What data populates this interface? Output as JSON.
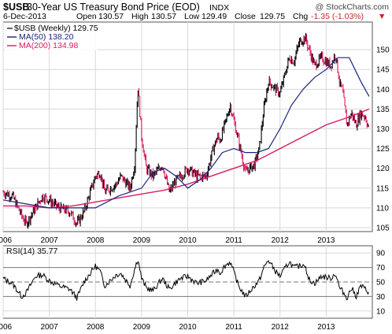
{
  "header": {
    "symbol": "$USB",
    "description": "30-Year US Treasury Bond Price (EOD)",
    "exchange": "INDX",
    "brand": "@ StockCharts.com",
    "date": "6-Dec-2013",
    "open_label": "Open",
    "open_value": "130.57",
    "high_label": "High",
    "high_value": "130.57",
    "low_label": "Low",
    "low_value": "129.49",
    "close_label": "Close",
    "close_value": "129.75",
    "chg_label": "Chg",
    "chg_value": "-1.35 (-1.03%)",
    "chg_marker": "▼"
  },
  "legend": {
    "price": "$USB (Weekly) 129.75",
    "ma50": "MA(50) 138.20",
    "ma200": "MA(200) 134.98"
  },
  "rsi_label": "RSI(14) 35.77",
  "colors": {
    "price": "#000000",
    "ma50": "#1a237e",
    "ma200": "#d81b60",
    "down_bar": "#d81b60",
    "grid": "#d8d8d8",
    "border": "#555555"
  },
  "chart_data": [
    {
      "type": "line",
      "title": "$USB 30-Year US Treasury Bond Price (EOD) INDX",
      "ylim": [
        104,
        157
      ],
      "y_ticks": [
        105,
        110,
        115,
        120,
        125,
        130,
        135,
        140,
        145,
        150
      ],
      "x_ticks": [
        "2006",
        "2007",
        "2008",
        "2009",
        "2010",
        "2011",
        "2012",
        "2013"
      ],
      "grid": true,
      "legend_position": "top-left",
      "series": [
        {
          "name": "$USB (Weekly)",
          "x": [
            2006.0,
            2006.2,
            2006.4,
            2006.5,
            2006.7,
            2006.85,
            2007.0,
            2007.2,
            2007.45,
            2007.6,
            2007.75,
            2008.0,
            2008.1,
            2008.2,
            2008.45,
            2008.55,
            2008.75,
            2008.85,
            2008.92,
            2009.0,
            2009.1,
            2009.25,
            2009.45,
            2009.6,
            2009.75,
            2009.85,
            2010.0,
            2010.2,
            2010.4,
            2010.55,
            2010.65,
            2010.7,
            2010.8,
            2010.92,
            2011.1,
            2011.25,
            2011.45,
            2011.55,
            2011.65,
            2011.75,
            2011.9,
            2012.0,
            2012.2,
            2012.3,
            2012.42,
            2012.55,
            2012.6,
            2012.75,
            2012.9,
            2013.1,
            2013.2,
            2013.3,
            2013.35,
            2013.45,
            2013.55,
            2013.65,
            2013.75,
            2013.85,
            2013.93
          ],
          "values": [
            114,
            113,
            108,
            106,
            110,
            113,
            112,
            110,
            109,
            106,
            109,
            118,
            119,
            114,
            116,
            118,
            115,
            121,
            141,
            128,
            120,
            118,
            121,
            114,
            117,
            118,
            120,
            118,
            118,
            125,
            128,
            127,
            131,
            136,
            127,
            119,
            121,
            125,
            135,
            142,
            140,
            139,
            148,
            147,
            152,
            153,
            151,
            146,
            148,
            146,
            149,
            141,
            140,
            131,
            134,
            131,
            134,
            133,
            129.75
          ]
        },
        {
          "name": "MA(50)",
          "x": [
            2006.0,
            2006.5,
            2007.0,
            2007.5,
            2008.0,
            2008.5,
            2009.0,
            2009.25,
            2009.5,
            2009.75,
            2010.0,
            2010.25,
            2010.5,
            2010.75,
            2011.0,
            2011.25,
            2011.5,
            2011.75,
            2012.0,
            2012.25,
            2012.5,
            2012.75,
            2013.0,
            2013.25,
            2013.5,
            2013.75,
            2013.93
          ],
          "values": [
            112,
            111,
            110,
            110,
            110,
            113,
            115,
            119,
            120,
            118,
            115,
            117,
            120,
            124,
            125,
            124,
            124,
            125,
            130,
            136,
            140,
            143,
            145,
            148,
            148,
            142,
            138.2
          ]
        },
        {
          "name": "MA(200)",
          "x": [
            2006.0,
            2006.5,
            2007.0,
            2007.5,
            2008.0,
            2008.5,
            2009.0,
            2009.5,
            2010.0,
            2010.5,
            2011.0,
            2011.5,
            2012.0,
            2012.5,
            2013.0,
            2013.5,
            2013.93
          ],
          "values": [
            110.5,
            110.5,
            110,
            110.5,
            111.5,
            112.5,
            113.5,
            114.5,
            116,
            118,
            120,
            122,
            125,
            128,
            131,
            133,
            134.98
          ]
        }
      ]
    },
    {
      "type": "line",
      "title": "RSI(14) 35.77",
      "ylim": [
        0,
        100
      ],
      "y_ticks": [
        10,
        30,
        50,
        70,
        90
      ],
      "reference_lines": [
        30,
        50,
        70
      ],
      "x_ticks": [
        "2006",
        "2007",
        "2008",
        "2009",
        "2010",
        "2011",
        "2012",
        "2013"
      ],
      "series": [
        {
          "name": "RSI(14)",
          "x": [
            2006.0,
            2006.2,
            2006.4,
            2006.5,
            2006.7,
            2006.85,
            2007.0,
            2007.2,
            2007.45,
            2007.6,
            2007.75,
            2008.0,
            2008.1,
            2008.2,
            2008.45,
            2008.55,
            2008.75,
            2008.85,
            2008.92,
            2009.0,
            2009.1,
            2009.25,
            2009.45,
            2009.6,
            2009.75,
            2009.85,
            2010.0,
            2010.2,
            2010.4,
            2010.55,
            2010.65,
            2010.7,
            2010.8,
            2010.92,
            2011.1,
            2011.25,
            2011.45,
            2011.55,
            2011.65,
            2011.75,
            2011.9,
            2012.0,
            2012.2,
            2012.3,
            2012.42,
            2012.55,
            2012.6,
            2012.75,
            2012.9,
            2013.1,
            2013.2,
            2013.3,
            2013.35,
            2013.45,
            2013.55,
            2013.65,
            2013.75,
            2013.85,
            2013.93
          ],
          "values": [
            55,
            48,
            30,
            35,
            58,
            60,
            52,
            45,
            40,
            28,
            50,
            72,
            65,
            45,
            60,
            62,
            45,
            68,
            82,
            55,
            42,
            38,
            55,
            40,
            50,
            55,
            58,
            48,
            52,
            62,
            68,
            62,
            72,
            78,
            45,
            30,
            45,
            52,
            70,
            80,
            65,
            58,
            78,
            70,
            72,
            75,
            55,
            48,
            58,
            55,
            62,
            40,
            38,
            28,
            42,
            30,
            45,
            40,
            35.77
          ]
        }
      ]
    }
  ]
}
